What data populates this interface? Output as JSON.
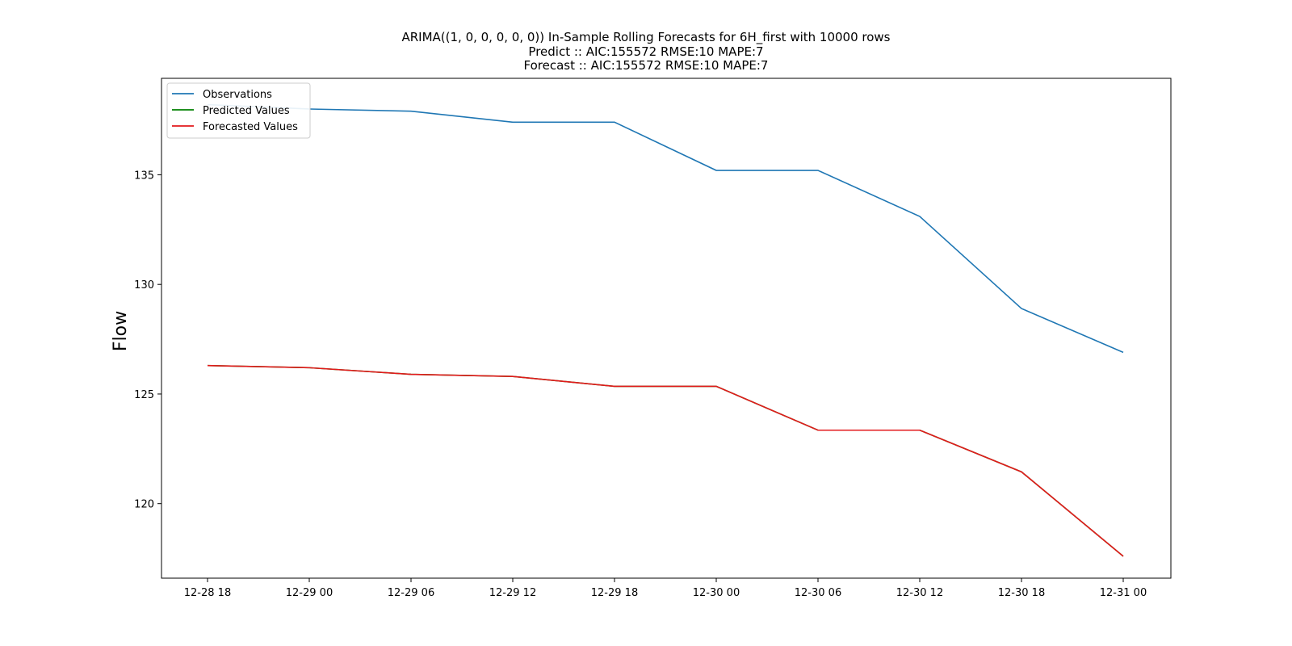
{
  "chart_data": {
    "type": "line",
    "title_lines": [
      "ARIMA((1, 0, 0, 0, 0, 0)) In-Sample Rolling Forecasts for 6H_first with 10000 rows",
      "Predict :: AIC:155572 RMSE:10 MAPE:7",
      "Forecast :: AIC:155572 RMSE:10 MAPE:7"
    ],
    "xlabel": "",
    "ylabel": "Flow",
    "x": [
      "12-28 18",
      "12-29 00",
      "12-29 06",
      "12-29 12",
      "12-29 18",
      "12-30 00",
      "12-30 06",
      "12-30 12",
      "12-30 18",
      "12-31 00"
    ],
    "yticks": [
      120,
      125,
      130,
      135
    ],
    "ylim": [
      116.6,
      139.4
    ],
    "grid": false,
    "legend_position": "upper-left",
    "series": [
      {
        "name": "Observations",
        "color": "#1f77b4",
        "values": [
          138.2,
          138.0,
          137.9,
          137.4,
          137.4,
          135.2,
          135.2,
          133.1,
          128.9,
          126.9
        ]
      },
      {
        "name": "Predicted Values",
        "color": "#008000",
        "values": [
          126.3,
          126.2,
          125.9,
          125.8,
          125.35,
          125.35,
          123.35,
          123.35,
          121.45,
          117.6
        ]
      },
      {
        "name": "Forecasted Values",
        "color": "#e31a1c",
        "values": [
          126.3,
          126.2,
          125.9,
          125.8,
          125.35,
          125.35,
          123.35,
          123.35,
          121.45,
          117.6
        ]
      }
    ]
  }
}
